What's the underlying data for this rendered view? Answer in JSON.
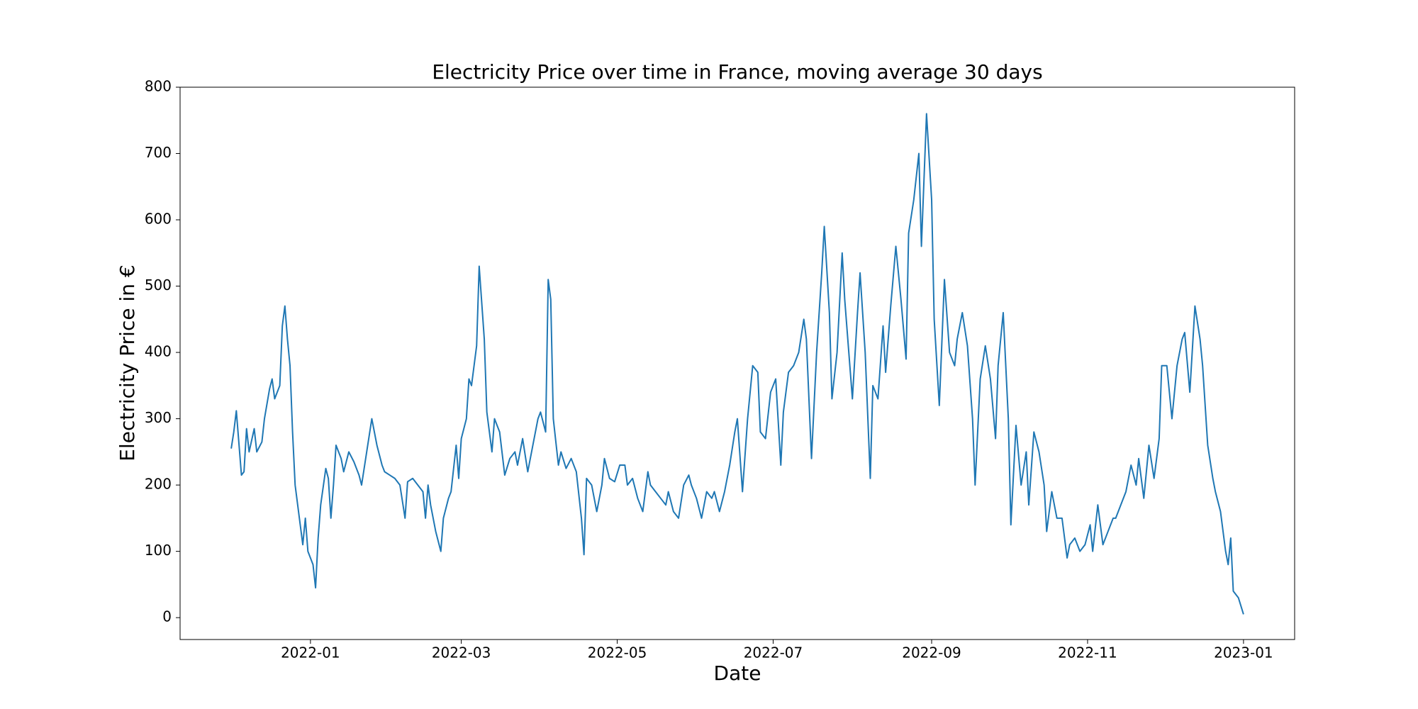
{
  "chart_data": {
    "type": "line",
    "title": "Electricity Price over time in France, moving average 30 days",
    "xlabel": "Date",
    "ylabel": "Electricity Price in €",
    "color": "#1f77b4",
    "xlim": [
      -51,
      385
    ],
    "ylim": [
      -33,
      800
    ],
    "xticks": [
      {
        "value": 0,
        "label": "2022-01"
      },
      {
        "value": 59,
        "label": "2022-03"
      },
      {
        "value": 120,
        "label": "2022-05"
      },
      {
        "value": 181,
        "label": "2022-07"
      },
      {
        "value": 243,
        "label": "2022-09"
      },
      {
        "value": 304,
        "label": "2022-11"
      },
      {
        "value": 365,
        "label": "2023-01"
      }
    ],
    "yticks": [
      0,
      100,
      200,
      300,
      400,
      500,
      600,
      700,
      800
    ],
    "x": [
      -31,
      -30,
      -29,
      -27,
      -26,
      -25,
      -24,
      -22,
      -21,
      -19,
      -18,
      -16,
      -15,
      -14,
      -12,
      -11,
      -10,
      -9,
      -8,
      -7,
      -6,
      -4,
      -3,
      -2,
      -1,
      1,
      2,
      3,
      4,
      6,
      7,
      8,
      9,
      10,
      12,
      13,
      15,
      17,
      19,
      20,
      22,
      24,
      26,
      28,
      29,
      31,
      33,
      35,
      37,
      38,
      40,
      42,
      44,
      45,
      46,
      47,
      49,
      51,
      52,
      54,
      55,
      57,
      58,
      59,
      61,
      62,
      63,
      65,
      66,
      68,
      69,
      71,
      72,
      74,
      76,
      78,
      80,
      81,
      83,
      85,
      87,
      89,
      90,
      92,
      93,
      94,
      95,
      97,
      98,
      100,
      102,
      104,
      106,
      107,
      108,
      110,
      112,
      114,
      115,
      117,
      119,
      121,
      123,
      124,
      126,
      128,
      130,
      132,
      133,
      135,
      137,
      139,
      140,
      142,
      144,
      146,
      148,
      149,
      151,
      153,
      155,
      157,
      158,
      160,
      162,
      164,
      166,
      167,
      169,
      171,
      173,
      175,
      176,
      178,
      180,
      182,
      184,
      185,
      187,
      189,
      191,
      193,
      194,
      196,
      198,
      200,
      201,
      203,
      204,
      206,
      208,
      209,
      211,
      212,
      214,
      215,
      217,
      219,
      220,
      222,
      224,
      225,
      227,
      229,
      231,
      233,
      234,
      236,
      238,
      239,
      241,
      243,
      244,
      246,
      248,
      250,
      252,
      253,
      255,
      257,
      259,
      260,
      262,
      264,
      266,
      268,
      269,
      271,
      273,
      274,
      276,
      278,
      280,
      281,
      283,
      285,
      287,
      288,
      290,
      292,
      294,
      296,
      297,
      299,
      301,
      303,
      305,
      306,
      308,
      310,
      312,
      314,
      315,
      317,
      319,
      321,
      323,
      324,
      326,
      328,
      330,
      332,
      333,
      335,
      337,
      339,
      341,
      342,
      344,
      346,
      348,
      349,
      351,
      353,
      354,
      356,
      358,
      359,
      360,
      361,
      363,
      365
    ],
    "values": [
      255,
      280,
      312,
      215,
      220,
      285,
      250,
      285,
      250,
      265,
      300,
      345,
      360,
      330,
      350,
      440,
      470,
      420,
      380,
      280,
      200,
      140,
      110,
      150,
      100,
      80,
      45,
      120,
      170,
      225,
      210,
      150,
      200,
      260,
      240,
      220,
      250,
      235,
      215,
      200,
      250,
      300,
      260,
      230,
      220,
      215,
      210,
      200,
      150,
      205,
      210,
      200,
      190,
      150,
      200,
      170,
      130,
      100,
      150,
      180,
      190,
      260,
      210,
      270,
      300,
      360,
      350,
      410,
      530,
      420,
      310,
      250,
      300,
      280,
      215,
      240,
      250,
      230,
      270,
      220,
      260,
      300,
      310,
      280,
      510,
      480,
      300,
      230,
      250,
      225,
      240,
      220,
      150,
      95,
      210,
      200,
      160,
      200,
      240,
      210,
      205,
      230,
      230,
      200,
      210,
      180,
      160,
      220,
      200,
      190,
      180,
      170,
      190,
      160,
      150,
      200,
      215,
      200,
      180,
      150,
      190,
      180,
      190,
      160,
      190,
      230,
      280,
      300,
      190,
      300,
      380,
      370,
      280,
      270,
      340,
      360,
      230,
      310,
      370,
      380,
      400,
      450,
      420,
      240,
      400,
      520,
      590,
      460,
      330,
      400,
      550,
      480,
      380,
      330,
      460,
      520,
      400,
      210,
      350,
      330,
      440,
      370,
      470,
      560,
      480,
      390,
      580,
      630,
      700,
      560,
      760,
      630,
      450,
      320,
      510,
      400,
      380,
      420,
      460,
      410,
      300,
      200,
      360,
      410,
      360,
      270,
      380,
      460,
      300,
      140,
      290,
      200,
      250,
      170,
      280,
      250,
      200,
      130,
      190,
      150,
      150,
      90,
      110,
      120,
      100,
      110,
      140,
      100,
      170,
      110,
      130,
      150,
      150,
      170,
      190,
      230,
      200,
      240,
      180,
      260,
      210,
      270,
      380,
      380,
      300,
      380,
      420,
      430,
      340,
      470,
      420,
      380,
      260,
      210,
      190,
      160,
      100,
      80,
      120,
      40,
      30,
      5
    ]
  }
}
